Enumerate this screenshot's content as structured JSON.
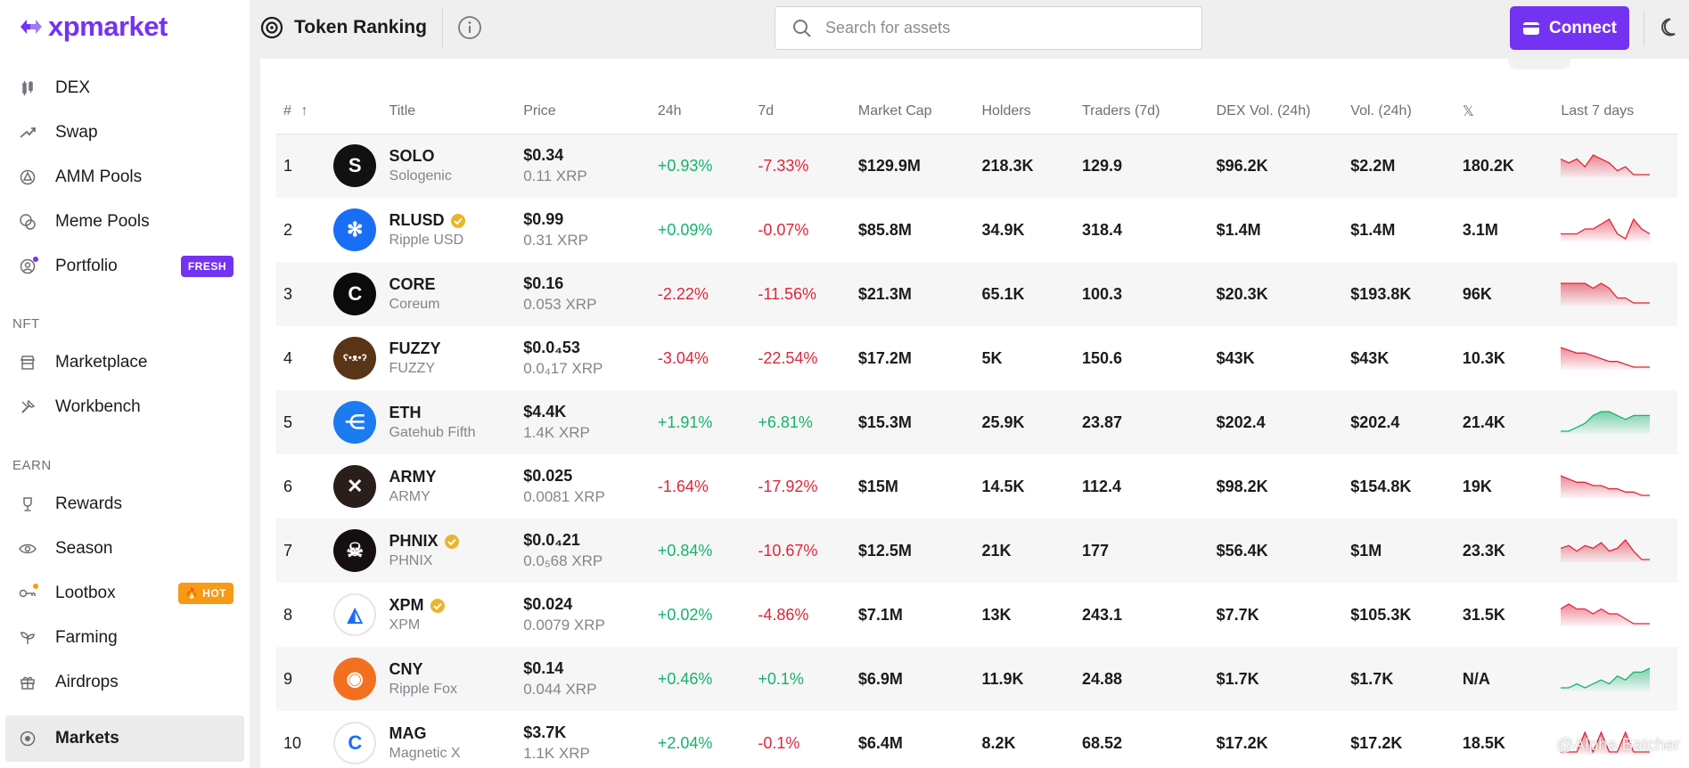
{
  "brand": {
    "name": "xpmarket",
    "accent": "#7433f2"
  },
  "sidebar": {
    "items": [
      {
        "id": "dex",
        "label": "DEX",
        "icon": "dex-icon"
      },
      {
        "id": "swap",
        "label": "Swap",
        "icon": "swap-icon"
      },
      {
        "id": "amm",
        "label": "AMM Pools",
        "icon": "amm-pools-icon"
      },
      {
        "id": "meme",
        "label": "Meme Pools",
        "icon": "meme-pools-icon"
      },
      {
        "id": "portfolio",
        "label": "Portfolio",
        "icon": "portfolio-icon",
        "badge": "FRESH"
      }
    ],
    "nft_label": "NFT",
    "nft_items": [
      {
        "id": "marketplace",
        "label": "Marketplace",
        "icon": "marketplace-icon"
      },
      {
        "id": "workbench",
        "label": "Workbench",
        "icon": "workbench-icon"
      }
    ],
    "earn_label": "EARN",
    "earn_items": [
      {
        "id": "rewards",
        "label": "Rewards",
        "icon": "trophy-icon"
      },
      {
        "id": "season",
        "label": "Season",
        "icon": "eye-icon"
      },
      {
        "id": "lootbox",
        "label": "Lootbox",
        "icon": "key-icon",
        "badge": "🔥 HOT"
      },
      {
        "id": "farming",
        "label": "Farming",
        "icon": "sprout-icon"
      },
      {
        "id": "airdrops",
        "label": "Airdrops",
        "icon": "gift-icon"
      }
    ],
    "active_item": {
      "label": "Markets",
      "icon": "markets-icon"
    }
  },
  "header": {
    "title": "Token Ranking",
    "search_placeholder": "Search for assets",
    "connect_label": "Connect"
  },
  "table": {
    "columns": [
      "#",
      "Title",
      "Price",
      "24h",
      "7d",
      "Market Cap",
      "Holders",
      "Traders (7d)",
      "DEX Vol. (24h)",
      "Vol. (24h)",
      "𝕏",
      "Last 7 days"
    ],
    "rows": [
      {
        "rank": "1",
        "symbol": "SOLO",
        "name": "Sologenic",
        "verified": false,
        "price_usd": "$0.34",
        "price_xrp": "0.11 XRP",
        "change_24h": "+0.93%",
        "change_7d": "-7.33%",
        "market_cap": "$129.9M",
        "holders": "218.3K",
        "traders": "129.9",
        "dex_vol": "$96.2K",
        "vol": "$2.2M",
        "x": "180.2K",
        "logo_bg": "#111111",
        "logo_glyph": "S",
        "trend": "down",
        "spark": [
          6,
          5,
          6,
          4,
          7,
          6,
          5,
          3,
          4,
          2,
          2,
          2
        ]
      },
      {
        "rank": "2",
        "symbol": "RLUSD",
        "name": "Ripple USD",
        "verified": true,
        "price_usd": "$0.99",
        "price_xrp": "0.31 XRP",
        "change_24h": "+0.09%",
        "change_7d": "-0.07%",
        "market_cap": "$85.8M",
        "holders": "34.9K",
        "traders": "318.4",
        "dex_vol": "$1.4M",
        "vol": "$1.4M",
        "x": "3.1M",
        "logo_bg": "#1a6ef5",
        "logo_glyph": "✻",
        "trend": "down",
        "spark": [
          3,
          3,
          3,
          4,
          4,
          5,
          6,
          3,
          2,
          6,
          4,
          3
        ]
      },
      {
        "rank": "3",
        "symbol": "CORE",
        "name": "Coreum",
        "verified": false,
        "price_usd": "$0.16",
        "price_xrp": "0.053 XRP",
        "change_24h": "-2.22%",
        "change_7d": "-11.56%",
        "market_cap": "$21.3M",
        "holders": "65.1K",
        "traders": "100.3",
        "dex_vol": "$20.3K",
        "vol": "$193.8K",
        "x": "96K",
        "logo_bg": "#0b0b0b",
        "logo_glyph": "C",
        "trend": "down",
        "spark": [
          6,
          6,
          6,
          6,
          5,
          6,
          5,
          3,
          3,
          2,
          2,
          2
        ]
      },
      {
        "rank": "4",
        "symbol": "FUZZY",
        "name": "FUZZY",
        "verified": false,
        "price_usd": "$0.0₄53",
        "price_xrp": "0.0₄17 XRP",
        "change_24h": "-3.04%",
        "change_7d": "-22.54%",
        "market_cap": "$17.2M",
        "holders": "5K",
        "traders": "150.6",
        "dex_vol": "$43K",
        "vol": "$43K",
        "x": "10.3K",
        "logo_bg": "#5a3416",
        "logo_glyph": "ʕ•ᴥ•ʔ",
        "trend": "down",
        "spark": [
          8,
          7,
          6,
          6,
          5,
          4,
          3,
          3,
          2,
          1,
          1,
          1
        ]
      },
      {
        "rank": "5",
        "symbol": "ETH",
        "name": "Gatehub Fifth",
        "verified": false,
        "price_usd": "$4.4K",
        "price_xrp": "1.4K XRP",
        "change_24h": "+1.91%",
        "change_7d": "+6.81%",
        "market_cap": "$15.3M",
        "holders": "25.9K",
        "traders": "23.87",
        "dex_vol": "$202.4",
        "vol": "$202.4",
        "x": "21.4K",
        "logo_bg": "#1c7bf0",
        "logo_glyph": "⋲",
        "trend": "up",
        "spark": [
          1,
          1,
          2,
          3,
          5,
          6,
          6,
          5,
          4,
          5,
          5,
          5
        ]
      },
      {
        "rank": "6",
        "symbol": "ARMY",
        "name": "ARMY",
        "verified": false,
        "price_usd": "$0.025",
        "price_xrp": "0.0081 XRP",
        "change_24h": "-1.64%",
        "change_7d": "-17.92%",
        "market_cap": "$15M",
        "holders": "14.5K",
        "traders": "112.4",
        "dex_vol": "$98.2K",
        "vol": "$154.8K",
        "x": "19K",
        "logo_bg": "#2a1e1a",
        "logo_glyph": "✕",
        "trend": "down",
        "spark": [
          7,
          6,
          5,
          5,
          4,
          4,
          3,
          3,
          2,
          2,
          1,
          1
        ]
      },
      {
        "rank": "7",
        "symbol": "PHNIX",
        "name": "PHNIX",
        "verified": true,
        "price_usd": "$0.0₄21",
        "price_xrp": "0.0₅68 XRP",
        "change_24h": "+0.84%",
        "change_7d": "-10.67%",
        "market_cap": "$12.5M",
        "holders": "21K",
        "traders": "177",
        "dex_vol": "$56.4K",
        "vol": "$1M",
        "x": "23.3K",
        "logo_bg": "#160f10",
        "logo_glyph": "☠",
        "trend": "down",
        "spark": [
          5,
          6,
          4,
          6,
          5,
          7,
          4,
          5,
          8,
          4,
          1,
          1
        ]
      },
      {
        "rank": "8",
        "symbol": "XPM",
        "name": "XPM",
        "verified": true,
        "price_usd": "$0.024",
        "price_xrp": "0.0079 XRP",
        "change_24h": "+0.02%",
        "change_7d": "-4.86%",
        "market_cap": "$7.1M",
        "holders": "13K",
        "traders": "243.1",
        "dex_vol": "$7.7K",
        "vol": "$105.3K",
        "x": "31.5K",
        "logo_bg": "#ffffff",
        "logo_glyph": "◭",
        "trend": "down",
        "spark": [
          4,
          5,
          4,
          4,
          3,
          4,
          3,
          3,
          2,
          1,
          1,
          1
        ]
      },
      {
        "rank": "9",
        "symbol": "CNY",
        "name": "Ripple Fox",
        "verified": false,
        "price_usd": "$0.14",
        "price_xrp": "0.044 XRP",
        "change_24h": "+0.46%",
        "change_7d": "+0.1%",
        "market_cap": "$6.9M",
        "holders": "11.9K",
        "traders": "24.88",
        "dex_vol": "$1.7K",
        "vol": "$1.7K",
        "x": "N/A",
        "logo_bg": "#f37021",
        "logo_glyph": "◉",
        "trend": "up",
        "spark": [
          1,
          1,
          2,
          1,
          2,
          3,
          2,
          4,
          3,
          5,
          5,
          6
        ]
      },
      {
        "rank": "10",
        "symbol": "MAG",
        "name": "Magnetic X",
        "verified": false,
        "price_usd": "$3.7K",
        "price_xrp": "1.1K XRP",
        "change_24h": "+2.04%",
        "change_7d": "-0.1%",
        "market_cap": "$6.4M",
        "holders": "8.2K",
        "traders": "68.52",
        "dex_vol": "$17.2K",
        "vol": "$17.2K",
        "x": "18.5K",
        "logo_bg": "#ffffff",
        "logo_glyph": "C",
        "trend": "down",
        "spark": [
          3,
          3,
          3,
          4,
          3,
          4,
          3,
          3,
          4,
          3,
          3,
          3
        ]
      }
    ]
  },
  "watermark": "@Alpha Batcher",
  "colors": {
    "positive": "#13b36c",
    "negative": "#e0243a",
    "fresh": "#7433f2",
    "hot": "#f79a16"
  }
}
